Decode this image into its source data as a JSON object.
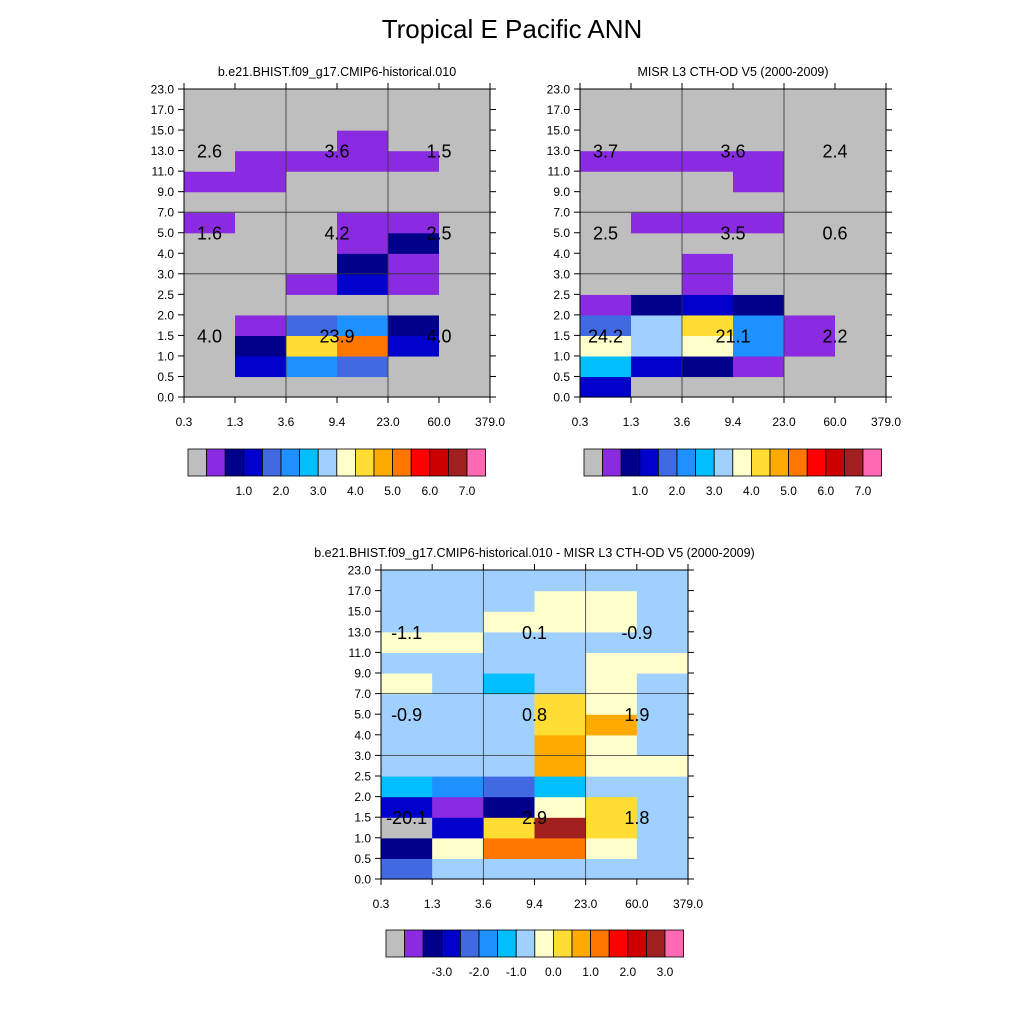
{
  "title": "Tropical E Pacific ANN",
  "palette": {
    "gray": "#BEBEBE",
    "c1": "#8A2BE2",
    "c2": "#00008B",
    "c3": "#0000CD",
    "c4": "#4169E1",
    "c5": "#1E90FF",
    "c6": "#00BFFF",
    "c7": "#A0D0FF",
    "c8": "#FFFFCC",
    "c9": "#FFDD33",
    "c10": "#FFAA00",
    "c11": "#FF7700",
    "c12": "#FF0000",
    "c13": "#CC0000",
    "c14": "#A02020",
    "c15": "#FF69B4"
  },
  "chart_data": [
    {
      "type": "heatmap",
      "title": "b.e21.BHIST.f09_g17.CMIP6-historical.010",
      "x_ticks": [
        "0.3",
        "1.3",
        "3.6",
        "9.4",
        "23.0",
        "60.0",
        "379.0"
      ],
      "y_ticks": [
        "0.0",
        "0.5",
        "1.0",
        "1.5",
        "2.0",
        "2.5",
        "3.0",
        "4.0",
        "5.0",
        "7.0",
        "9.0",
        "11.0",
        "13.0",
        "15.0",
        "17.0",
        "23.0"
      ],
      "cells": [
        [
          "gray",
          "gray",
          "gray",
          "gray",
          "gray",
          "gray"
        ],
        [
          "gray",
          "c3",
          "c5",
          "c4",
          "gray",
          "gray"
        ],
        [
          "gray",
          "c2",
          "c9",
          "c11",
          "c3",
          "gray"
        ],
        [
          "gray",
          "c1",
          "c4",
          "c5",
          "c2",
          "gray"
        ],
        [
          "gray",
          "gray",
          "gray",
          "gray",
          "gray",
          "gray"
        ],
        [
          "gray",
          "gray",
          "c1",
          "c3",
          "c1",
          "gray"
        ],
        [
          "gray",
          "gray",
          "gray",
          "c2",
          "c1",
          "gray"
        ],
        [
          "gray",
          "gray",
          "gray",
          "c1",
          "c2",
          "gray"
        ],
        [
          "c1",
          "gray",
          "gray",
          "c1",
          "c1",
          "gray"
        ],
        [
          "gray",
          "gray",
          "gray",
          "gray",
          "gray",
          "gray"
        ],
        [
          "c1",
          "c1",
          "gray",
          "gray",
          "gray",
          "gray"
        ],
        [
          "gray",
          "c1",
          "c1",
          "c1",
          "c1",
          "gray"
        ],
        [
          "gray",
          "gray",
          "gray",
          "c1",
          "gray",
          "gray"
        ],
        [
          "gray",
          "gray",
          "gray",
          "gray",
          "gray",
          "gray"
        ],
        [
          "gray",
          "gray",
          "gray",
          "gray",
          "gray",
          "gray"
        ]
      ],
      "annotations": [
        {
          "text": "2.6",
          "row": "high",
          "col": "left"
        },
        {
          "text": "3.6",
          "row": "high",
          "col": "mid"
        },
        {
          "text": "1.5",
          "row": "high",
          "col": "right"
        },
        {
          "text": "1.6",
          "row": "mid",
          "col": "left"
        },
        {
          "text": "4.2",
          "row": "mid",
          "col": "mid"
        },
        {
          "text": "2.5",
          "row": "mid",
          "col": "right"
        },
        {
          "text": "4.0",
          "row": "low",
          "col": "left"
        },
        {
          "text": "23.9",
          "row": "low",
          "col": "mid"
        },
        {
          "text": "4.0",
          "row": "low",
          "col": "right"
        }
      ],
      "colorbar": {
        "labels": [
          "1.0",
          "2.0",
          "3.0",
          "4.0",
          "5.0",
          "6.0",
          "7.0"
        ]
      }
    },
    {
      "type": "heatmap",
      "title": "MISR L3 CTH-OD V5 (2000-2009)",
      "x_ticks": [
        "0.3",
        "1.3",
        "3.6",
        "9.4",
        "23.0",
        "60.0",
        "379.0"
      ],
      "y_ticks": [
        "0.0",
        "0.5",
        "1.0",
        "1.5",
        "2.0",
        "2.5",
        "3.0",
        "4.0",
        "5.0",
        "7.0",
        "9.0",
        "11.0",
        "13.0",
        "15.0",
        "17.0",
        "23.0"
      ],
      "cells": [
        [
          "c3",
          "gray",
          "gray",
          "gray",
          "gray",
          "gray"
        ],
        [
          "c6",
          "c3",
          "c2",
          "c1",
          "gray",
          "gray"
        ],
        [
          "c8",
          "c7",
          "c8",
          "c5",
          "c1",
          "gray"
        ],
        [
          "c4",
          "c7",
          "c9",
          "c5",
          "c1",
          "gray"
        ],
        [
          "c1",
          "c2",
          "c3",
          "c2",
          "gray",
          "gray"
        ],
        [
          "gray",
          "gray",
          "c1",
          "gray",
          "gray",
          "gray"
        ],
        [
          "gray",
          "gray",
          "c1",
          "gray",
          "gray",
          "gray"
        ],
        [
          "gray",
          "gray",
          "gray",
          "gray",
          "gray",
          "gray"
        ],
        [
          "gray",
          "c1",
          "c1",
          "c1",
          "gray",
          "gray"
        ],
        [
          "gray",
          "gray",
          "gray",
          "gray",
          "gray",
          "gray"
        ],
        [
          "gray",
          "gray",
          "gray",
          "c1",
          "gray",
          "gray"
        ],
        [
          "c1",
          "c1",
          "c1",
          "c1",
          "gray",
          "gray"
        ],
        [
          "gray",
          "gray",
          "gray",
          "gray",
          "gray",
          "gray"
        ],
        [
          "gray",
          "gray",
          "gray",
          "gray",
          "gray",
          "gray"
        ],
        [
          "gray",
          "gray",
          "gray",
          "gray",
          "gray",
          "gray"
        ]
      ],
      "annotations": [
        {
          "text": "3.7",
          "row": "high",
          "col": "left"
        },
        {
          "text": "3.6",
          "row": "high",
          "col": "mid"
        },
        {
          "text": "2.4",
          "row": "high",
          "col": "right"
        },
        {
          "text": "2.5",
          "row": "mid",
          "col": "left"
        },
        {
          "text": "3.5",
          "row": "mid",
          "col": "mid"
        },
        {
          "text": "0.6",
          "row": "mid",
          "col": "right"
        },
        {
          "text": "24.2",
          "row": "low",
          "col": "left"
        },
        {
          "text": "21.1",
          "row": "low",
          "col": "mid"
        },
        {
          "text": "2.2",
          "row": "low",
          "col": "right"
        }
      ],
      "colorbar": {
        "labels": [
          "1.0",
          "2.0",
          "3.0",
          "4.0",
          "5.0",
          "6.0",
          "7.0"
        ]
      }
    },
    {
      "type": "heatmap",
      "title": "b.e21.BHIST.f09_g17.CMIP6-historical.010 - MISR L3 CTH-OD V5 (2000-2009)",
      "x_ticks": [
        "0.3",
        "1.3",
        "3.6",
        "9.4",
        "23.0",
        "60.0",
        "379.0"
      ],
      "y_ticks": [
        "0.0",
        "0.5",
        "1.0",
        "1.5",
        "2.0",
        "2.5",
        "3.0",
        "4.0",
        "5.0",
        "7.0",
        "9.0",
        "11.0",
        "13.0",
        "15.0",
        "17.0",
        "23.0"
      ],
      "cells": [
        [
          "c4",
          "c7",
          "c7",
          "c7",
          "c7",
          "c7"
        ],
        [
          "c2",
          "c8",
          "c11",
          "c11",
          "c8",
          "c7"
        ],
        [
          "gray",
          "c3",
          "c9",
          "c14",
          "c9",
          "c7"
        ],
        [
          "c3",
          "c1",
          "c2",
          "c8",
          "c9",
          "c7"
        ],
        [
          "c6",
          "c5",
          "c4",
          "c6",
          "c7",
          "c7"
        ],
        [
          "c7",
          "c7",
          "c7",
          "c10",
          "c8",
          "c8"
        ],
        [
          "c7",
          "c7",
          "c7",
          "c10",
          "c8",
          "c7"
        ],
        [
          "c7",
          "c7",
          "c7",
          "c9",
          "c10",
          "c7"
        ],
        [
          "c7",
          "c7",
          "c7",
          "c9",
          "c8",
          "c7"
        ],
        [
          "c8",
          "c7",
          "c6",
          "c7",
          "c8",
          "c7"
        ],
        [
          "c7",
          "c7",
          "c7",
          "c7",
          "c8",
          "c8"
        ],
        [
          "c8",
          "c8",
          "c7",
          "c7",
          "c7",
          "c7"
        ],
        [
          "c7",
          "c7",
          "c8",
          "c8",
          "c8",
          "c7"
        ],
        [
          "c7",
          "c7",
          "c7",
          "c8",
          "c8",
          "c7"
        ],
        [
          "c7",
          "c7",
          "c7",
          "c7",
          "c7",
          "c7"
        ]
      ],
      "annotations": [
        {
          "text": "-1.1",
          "row": "high",
          "col": "left"
        },
        {
          "text": "0.1",
          "row": "high",
          "col": "mid"
        },
        {
          "text": "-0.9",
          "row": "high",
          "col": "right"
        },
        {
          "text": "-0.9",
          "row": "mid",
          "col": "left"
        },
        {
          "text": "0.8",
          "row": "mid",
          "col": "mid"
        },
        {
          "text": "1.9",
          "row": "mid",
          "col": "right"
        },
        {
          "text": "-20.1",
          "row": "low",
          "col": "left"
        },
        {
          "text": "2.9",
          "row": "low",
          "col": "mid"
        },
        {
          "text": "1.8",
          "row": "low",
          "col": "right"
        }
      ],
      "colorbar": {
        "labels": [
          "-3.0",
          "-2.0",
          "-1.0",
          "0.0",
          "1.0",
          "2.0",
          "3.0"
        ]
      }
    }
  ]
}
